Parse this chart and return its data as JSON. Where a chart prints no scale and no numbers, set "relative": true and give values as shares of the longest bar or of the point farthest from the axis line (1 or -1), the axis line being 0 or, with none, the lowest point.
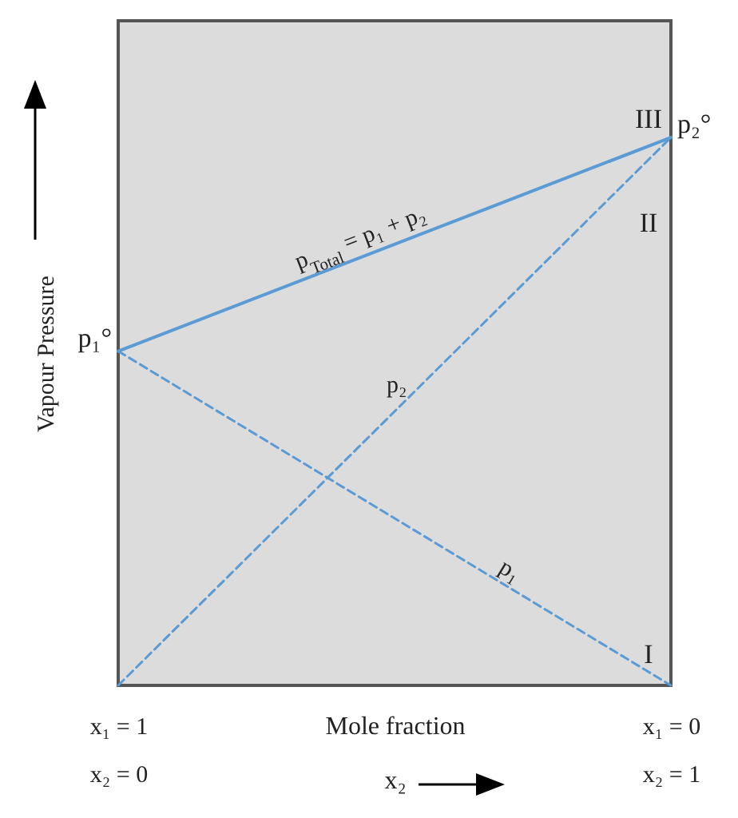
{
  "chart_data": {
    "type": "line",
    "relative": true,
    "xlabel": "Mole fraction\nx₂",
    "ylabel": "Vapour Pressure",
    "categories": [
      "x₁ = 1\nx₂ = 0",
      "x₁ = 0\nx₂ = 1"
    ],
    "series": [
      {
        "name": "p$_{Total}$ = p₁ + p₂",
        "color": "#5b9bd5",
        "line_style": "solid",
        "values": [
          0.61,
          1
        ]
      },
      {
        "name": "p₂",
        "color": "#5b9bd5",
        "line_style": "dashed",
        "values": [
          0,
          1
        ]
      },
      {
        "name": "p₁",
        "color": "#5b9bd5",
        "line_style": "dashed",
        "values": [
          0.61,
          0
        ]
      }
    ],
    "annotations": [
      {
        "text": "p₁°",
        "x": "x₁ = 1\nx₂ = 0",
        "y": 0.61
      },
      {
        "text": "p₂°",
        "x": "x₁ = 0\nx₂ = 1",
        "y": 1
      },
      "III",
      "II",
      "I"
    ]
  }
}
